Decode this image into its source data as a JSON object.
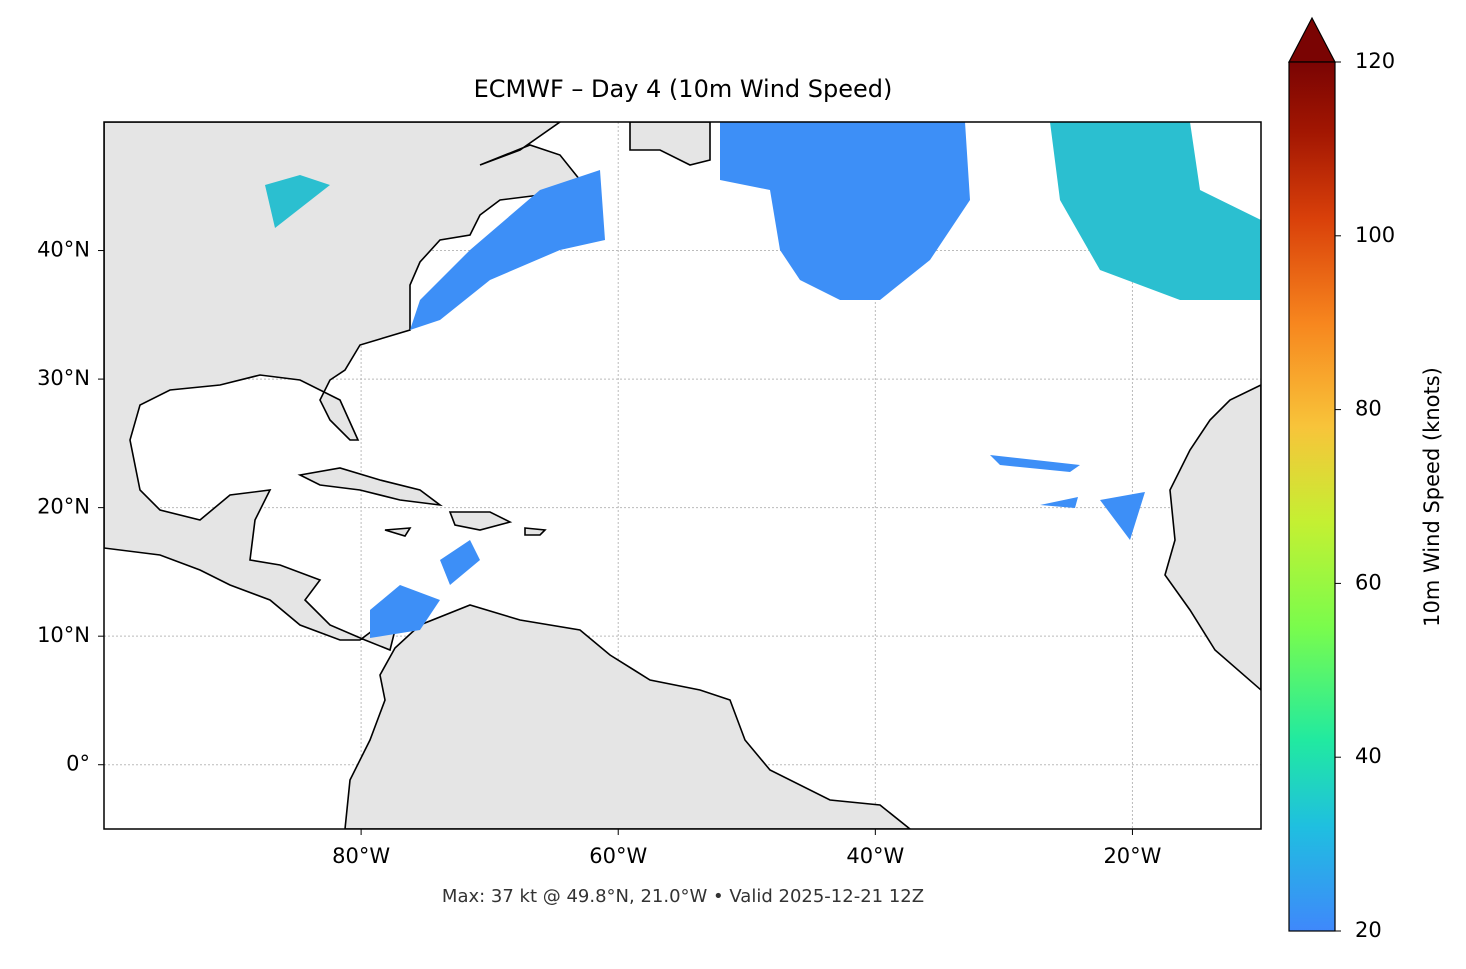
{
  "title": "ECMWF – Day 4 (10m Wind Speed)",
  "map": {
    "xlim": [
      -100,
      -10
    ],
    "ylim": [
      -5,
      50
    ],
    "xticks": [
      {
        "value": -80,
        "label": "80°W"
      },
      {
        "value": -60,
        "label": "60°W"
      },
      {
        "value": -40,
        "label": "40°W"
      },
      {
        "value": -20,
        "label": "20°W"
      }
    ],
    "yticks": [
      {
        "value": 0,
        "label": "0°"
      },
      {
        "value": 10,
        "label": "10°N"
      },
      {
        "value": 20,
        "label": "20°N"
      },
      {
        "value": 30,
        "label": "30°N"
      },
      {
        "value": 40,
        "label": "40°N"
      }
    ],
    "grid": true
  },
  "colorbar": {
    "label": "10m Wind Speed (knots)",
    "lim": [
      20,
      120
    ],
    "ticks": [
      20,
      40,
      60,
      80,
      100,
      120
    ]
  },
  "footer": "Max: 37 kt @ 49.8°N, 21.0°W • Valid 2025-12-21 12Z"
}
